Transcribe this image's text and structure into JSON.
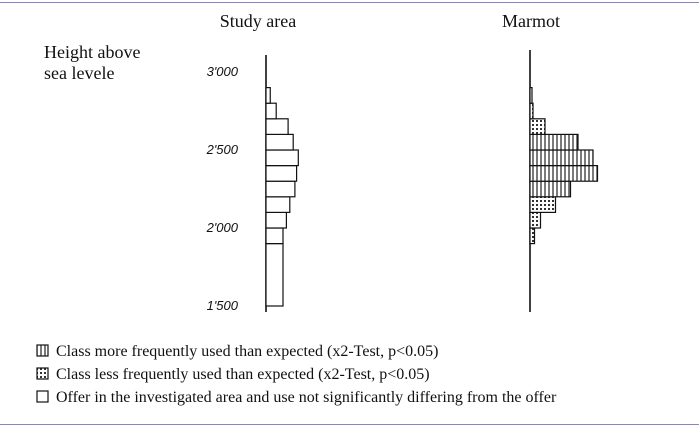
{
  "chart_data": {
    "type": "bar",
    "orientation": "horizontal",
    "ylabel_lines": [
      "Height above",
      "sea levele"
    ],
    "y_ticks": [
      "3'000",
      "2'500",
      "2'000",
      "1'500"
    ],
    "y_tick_values": [
      3000,
      2500,
      2000,
      1500
    ],
    "ylim": [
      1500,
      3000
    ],
    "class_width": 100,
    "panels": [
      {
        "title": "Study area",
        "bars": [
          {
            "from": 1500,
            "to": 1900,
            "value": 1.0,
            "class": "neutral"
          },
          {
            "from": 1900,
            "to": 2000,
            "value": 1.0,
            "class": "neutral"
          },
          {
            "from": 2000,
            "to": 2100,
            "value": 1.2,
            "class": "neutral"
          },
          {
            "from": 2100,
            "to": 2200,
            "value": 1.4,
            "class": "neutral"
          },
          {
            "from": 2200,
            "to": 2300,
            "value": 1.7,
            "class": "neutral"
          },
          {
            "from": 2300,
            "to": 2400,
            "value": 1.8,
            "class": "neutral"
          },
          {
            "from": 2400,
            "to": 2500,
            "value": 1.9,
            "class": "neutral"
          },
          {
            "from": 2500,
            "to": 2600,
            "value": 1.6,
            "class": "neutral"
          },
          {
            "from": 2600,
            "to": 2700,
            "value": 1.3,
            "class": "neutral"
          },
          {
            "from": 2700,
            "to": 2800,
            "value": 0.6,
            "class": "neutral"
          },
          {
            "from": 2800,
            "to": 2900,
            "value": 0.25,
            "class": "neutral"
          }
        ]
      },
      {
        "title": "Marmot",
        "bars": [
          {
            "from": 1900,
            "to": 2000,
            "value": 0.3,
            "class": "less"
          },
          {
            "from": 2000,
            "to": 2100,
            "value": 0.7,
            "class": "less"
          },
          {
            "from": 2100,
            "to": 2200,
            "value": 1.7,
            "class": "less"
          },
          {
            "from": 2200,
            "to": 2300,
            "value": 2.7,
            "class": "more"
          },
          {
            "from": 2300,
            "to": 2400,
            "value": 4.5,
            "class": "more"
          },
          {
            "from": 2400,
            "to": 2500,
            "value": 4.2,
            "class": "more"
          },
          {
            "from": 2500,
            "to": 2600,
            "value": 3.2,
            "class": "more"
          },
          {
            "from": 2600,
            "to": 2700,
            "value": 1.0,
            "class": "less"
          },
          {
            "from": 2700,
            "to": 2800,
            "value": 0.2,
            "class": "less"
          },
          {
            "from": 2800,
            "to": 2900,
            "value": 0.1,
            "class": "neutral"
          }
        ]
      }
    ]
  },
  "legend": {
    "more": "Class more frequently used than expected (x2-Test, p<0.05)",
    "less": "Class less frequently used than expected (x2-Test, p<0.05)",
    "neutral": "Offer in the investigated area and use not significantly differing from the offer"
  }
}
